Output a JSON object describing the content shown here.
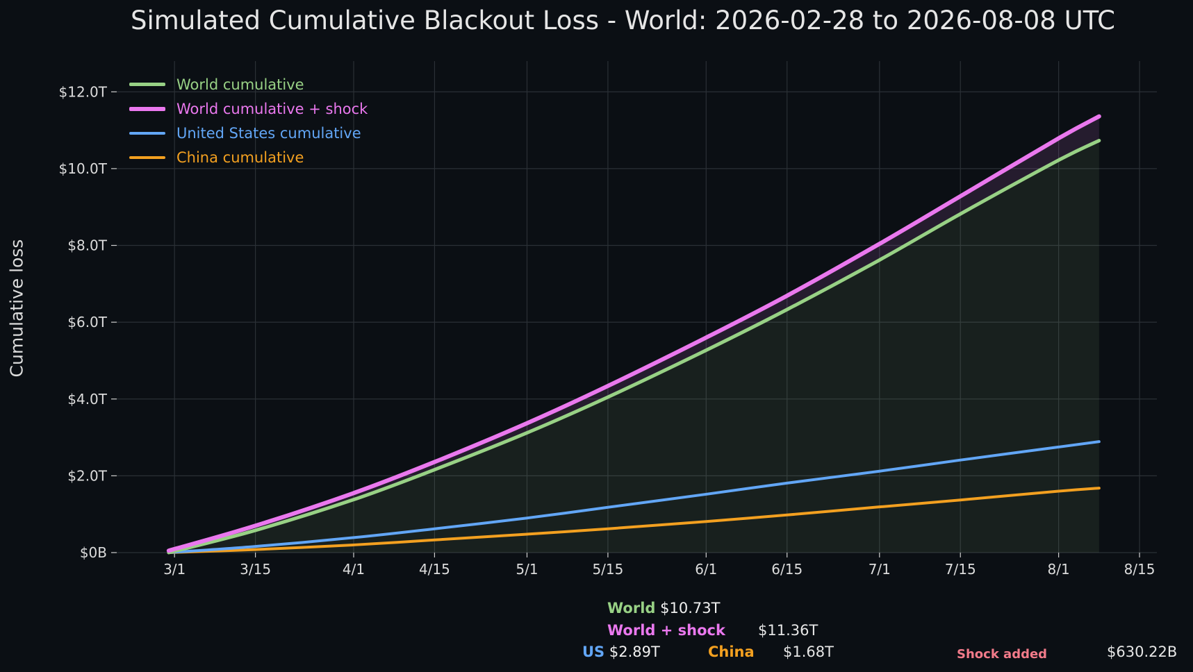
{
  "title": "Simulated Cumulative Blackout Loss - World: 2026-02-28 to 2026-08-08 UTC",
  "colors": {
    "background": "#0b0f14",
    "world": "#98d185",
    "world_shock": "#ea78ee",
    "us": "#62a6f6",
    "china": "#f3a020",
    "shock_added": "#f27b8a",
    "grid": "#2b3036"
  },
  "chart_data": {
    "type": "line",
    "title": "Simulated Cumulative Blackout Loss - World: 2026-02-28 to 2026-08-08 UTC",
    "xlabel": "",
    "ylabel": "Cumulative loss",
    "x_ticks": [
      "3/1",
      "3/15",
      "4/1",
      "4/15",
      "5/1",
      "5/15",
      "6/1",
      "6/15",
      "7/1",
      "7/15",
      "8/1",
      "8/15"
    ],
    "x_tick_dates": [
      "2026-03-01",
      "2026-03-15",
      "2026-04-01",
      "2026-04-15",
      "2026-05-01",
      "2026-05-15",
      "2026-06-01",
      "2026-06-15",
      "2026-07-01",
      "2026-07-15",
      "2026-08-01",
      "2026-08-15"
    ],
    "y_ticks": [
      "$0B",
      "$2.0T",
      "$4.0T",
      "$6.0T",
      "$8.0T",
      "$10.0T",
      "$12.0T"
    ],
    "y_tick_values": [
      0,
      2,
      4,
      6,
      8,
      10,
      12
    ],
    "y_unit": "trillion USD",
    "xlim": [
      "2026-02-19",
      "2026-08-18"
    ],
    "ylim": [
      0,
      12.8
    ],
    "grid": true,
    "legend_position": "top-left",
    "x": [
      "2026-02-28",
      "2026-03-15",
      "2026-04-01",
      "2026-04-15",
      "2026-05-01",
      "2026-05-15",
      "2026-06-01",
      "2026-06-15",
      "2026-07-01",
      "2026-07-15",
      "2026-08-01",
      "2026-08-08"
    ],
    "series": [
      {
        "name": "World cumulative",
        "color": "#98d185",
        "fill": true,
        "values": [
          0.0,
          0.58,
          1.38,
          2.16,
          3.12,
          4.05,
          5.27,
          6.33,
          7.62,
          8.82,
          10.22,
          10.73
        ]
      },
      {
        "name": "World cumulative + shock",
        "color": "#ea78ee",
        "fill": true,
        "values": [
          0.05,
          0.7,
          1.55,
          2.36,
          3.37,
          4.34,
          5.6,
          6.69,
          8.04,
          9.28,
          10.79,
          11.36
        ]
      },
      {
        "name": "United States cumulative",
        "color": "#62a6f6",
        "fill": false,
        "values": [
          0.0,
          0.16,
          0.39,
          0.62,
          0.9,
          1.18,
          1.52,
          1.81,
          2.12,
          2.41,
          2.75,
          2.89
        ]
      },
      {
        "name": "China cumulative",
        "color": "#f3a020",
        "fill": false,
        "values": [
          0.0,
          0.08,
          0.2,
          0.33,
          0.48,
          0.62,
          0.81,
          0.98,
          1.19,
          1.37,
          1.6,
          1.68
        ]
      }
    ]
  },
  "summary": {
    "world_label": "World",
    "world_value": "$10.73T",
    "shock_label": "World + shock",
    "shock_value": "$11.36T",
    "us_label": "US",
    "us_value": "$2.89T",
    "china_label": "China",
    "china_value": "$1.68T",
    "shock_added_label": "Shock added",
    "shock_added_value": "$630.22B"
  }
}
